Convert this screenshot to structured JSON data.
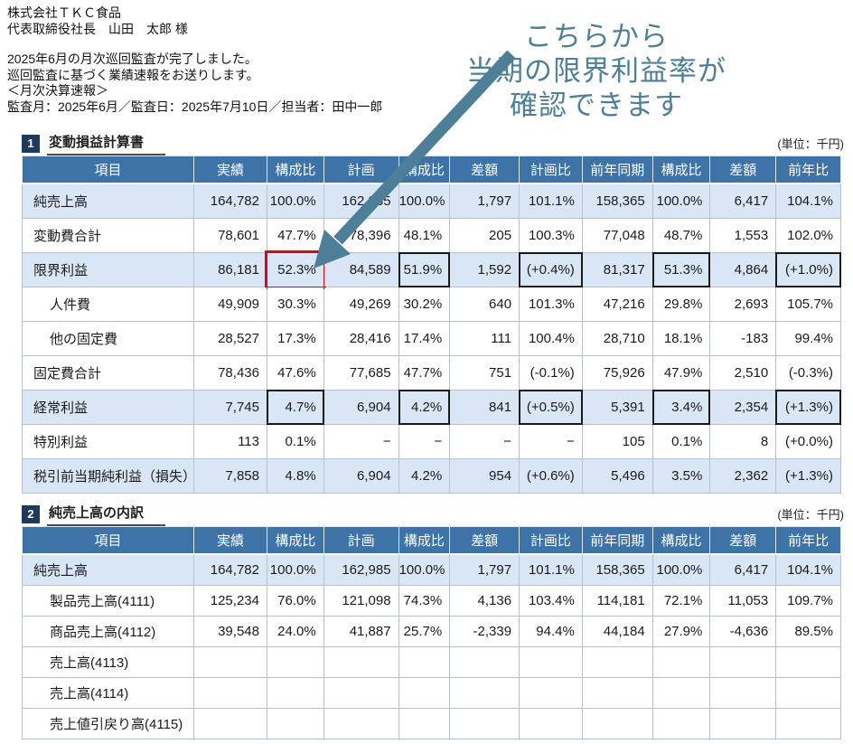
{
  "letter": {
    "company": "株式会社ＴＫＣ食品",
    "recipient": "代表取締役社長　山田　太郎 様",
    "body1": "2025年6月の月次巡回監査が完了しました。",
    "body2": "巡回監査に基づく業績速報をお送りします。",
    "body3": "＜月次決算速報＞",
    "body4": "監査月：2025年6月／監査日：2025年7月10日／担当者：田中一郎"
  },
  "annotation": {
    "line1": "こちらから",
    "line2": "当期の限界利益率が",
    "line3": "確認できます"
  },
  "colors": {
    "accent": "#4e7f99",
    "header_blue": "#3e73a7",
    "row_blue": "#d9e6f6",
    "badge_navy": "#1b3a5c",
    "highlight_red": "#e3000f"
  },
  "sections": [
    {
      "number": "1",
      "title": "変動損益計算書",
      "unit": "(単位：千円)"
    },
    {
      "number": "2",
      "title": "純売上高の内訳",
      "unit": "(単位：千円)"
    }
  ],
  "columns": [
    "項目",
    "実績",
    "構成比",
    "計画",
    "構成比",
    "差額",
    "計画比",
    "前年同期",
    "構成比",
    "差額",
    "前年比"
  ],
  "tables": [
    {
      "name": "変動損益計算書",
      "rows": [
        {
          "label": "純売上高",
          "emphasis": true,
          "indent": false,
          "cells": [
            "164,782",
            "100.0%",
            "162,985",
            "100.0%",
            "1,797",
            "101.1%",
            "158,365",
            "100.0%",
            "6,417",
            "104.1%"
          ]
        },
        {
          "label": "変動費合計",
          "emphasis": false,
          "indent": false,
          "cells": [
            "78,601",
            "47.7%",
            "78,396",
            "48.1%",
            "205",
            "100.3%",
            "77,048",
            "48.7%",
            "1,553",
            "102.0%"
          ]
        },
        {
          "label": "限界利益",
          "emphasis": true,
          "indent": false,
          "cells": [
            "86,181",
            {
              "v": "52.3%",
              "box": "red"
            },
            "84,589",
            {
              "v": "51.9%",
              "box": "black"
            },
            "1,592",
            {
              "v": "(+0.4%)",
              "box": "black"
            },
            "81,317",
            {
              "v": "51.3%",
              "box": "black"
            },
            "4,864",
            {
              "v": "(+1.0%)",
              "box": "black"
            }
          ]
        },
        {
          "label": "人件費",
          "emphasis": false,
          "indent": true,
          "cells": [
            "49,909",
            "30.3%",
            "49,269",
            "30.2%",
            "640",
            "101.3%",
            "47,216",
            "29.8%",
            "2,693",
            "105.7%"
          ]
        },
        {
          "label": "他の固定費",
          "emphasis": false,
          "indent": true,
          "cells": [
            "28,527",
            "17.3%",
            "28,416",
            "17.4%",
            "111",
            "100.4%",
            "28,710",
            "18.1%",
            "-183",
            "99.4%"
          ]
        },
        {
          "label": "固定費合計",
          "emphasis": false,
          "indent": false,
          "cells": [
            "78,436",
            "47.6%",
            "77,685",
            "47.7%",
            "751",
            "(-0.1%)",
            "75,926",
            "47.9%",
            "2,510",
            "(-0.3%)"
          ]
        },
        {
          "label": "経常利益",
          "emphasis": true,
          "indent": false,
          "cells": [
            "7,745",
            {
              "v": "4.7%",
              "box": "black"
            },
            "6,904",
            {
              "v": "4.2%",
              "box": "black"
            },
            "841",
            {
              "v": "(+0.5%)",
              "box": "black"
            },
            "5,391",
            {
              "v": "3.4%",
              "box": "black"
            },
            "2,354",
            {
              "v": "(+1.3%)",
              "box": "black"
            }
          ]
        },
        {
          "label": "特別利益",
          "emphasis": false,
          "indent": false,
          "cells": [
            "113",
            "0.1%",
            "−",
            "−",
            "−",
            "−",
            "105",
            "0.1%",
            "8",
            "(+0.0%)"
          ]
        },
        {
          "label": "税引前当期純利益（損失）",
          "emphasis": true,
          "indent": false,
          "cells": [
            "7,858",
            "4.8%",
            "6,904",
            "4.2%",
            "954",
            "(+0.6%)",
            "5,496",
            "3.5%",
            "2,362",
            "(+1.3%)"
          ]
        }
      ]
    },
    {
      "name": "純売上高の内訳",
      "rows": [
        {
          "label": "純売上高",
          "emphasis": true,
          "indent": false,
          "cells": [
            "164,782",
            "100.0%",
            "162,985",
            "100.0%",
            "1,797",
            "101.1%",
            "158,365",
            "100.0%",
            "6,417",
            "104.1%"
          ]
        },
        {
          "label": "製品売上高(4111)",
          "emphasis": false,
          "indent": true,
          "cells": [
            "125,234",
            "76.0%",
            "121,098",
            "74.3%",
            "4,136",
            "103.4%",
            "114,181",
            "72.1%",
            "11,053",
            "109.7%"
          ]
        },
        {
          "label": "商品売上高(4112)",
          "emphasis": false,
          "indent": true,
          "cells": [
            "39,548",
            "24.0%",
            "41,887",
            "25.7%",
            "-2,339",
            "94.4%",
            "44,184",
            "27.9%",
            "-4,636",
            "89.5%"
          ]
        },
        {
          "label": "売上高(4113)",
          "emphasis": false,
          "indent": true,
          "cells": [
            "",
            "",
            "",
            "",
            "",
            "",
            "",
            "",
            "",
            ""
          ]
        },
        {
          "label": "売上高(4114)",
          "emphasis": false,
          "indent": true,
          "cells": [
            "",
            "",
            "",
            "",
            "",
            "",
            "",
            "",
            "",
            ""
          ]
        },
        {
          "label": "売上値引戻り高(4115)",
          "emphasis": false,
          "indent": true,
          "cells": [
            "",
            "",
            "",
            "",
            "",
            "",
            "",
            "",
            "",
            ""
          ]
        }
      ]
    }
  ]
}
